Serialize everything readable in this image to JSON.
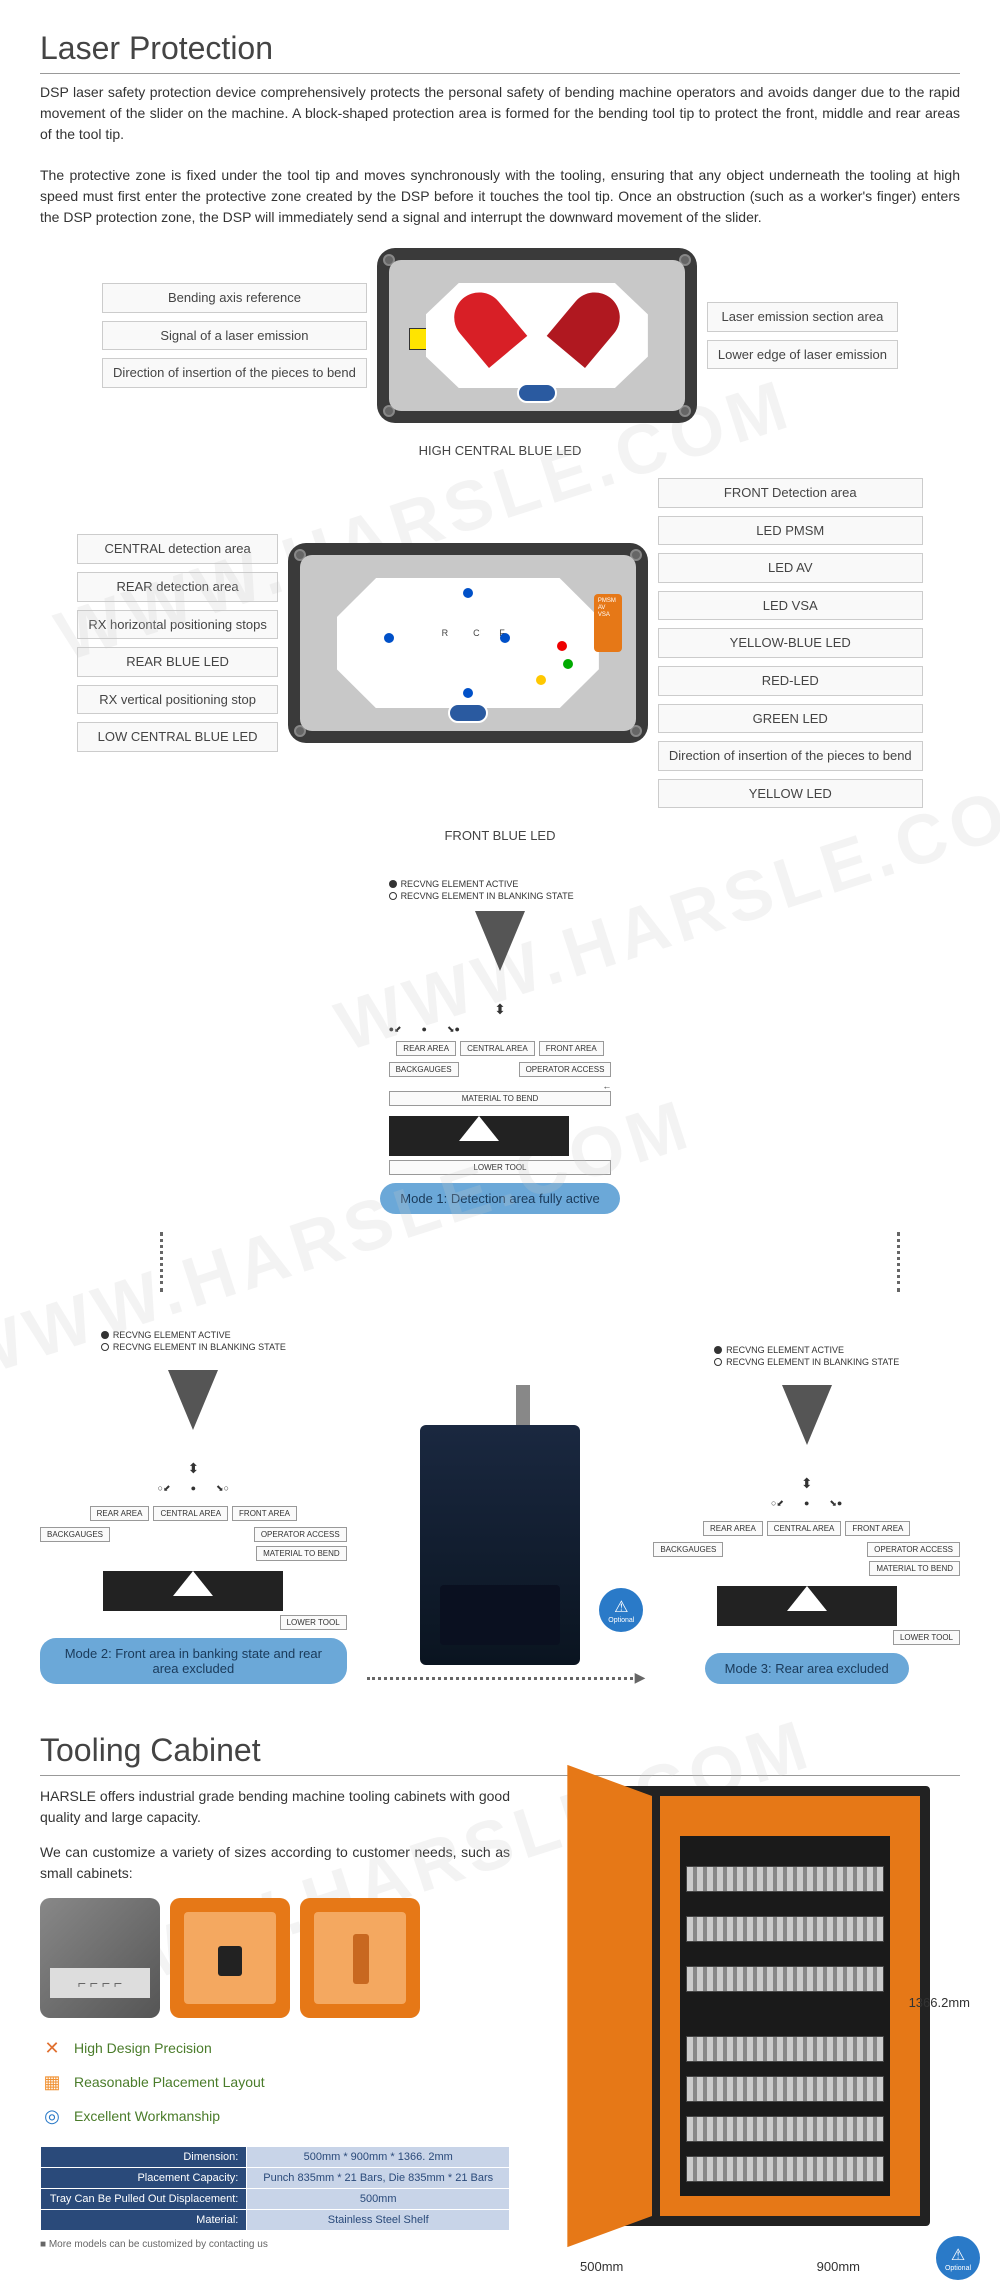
{
  "watermark": "WWW.HARSLE.COM",
  "section1": {
    "title": "Laser Protection",
    "para1": "DSP laser safety protection device comprehensively protects the personal safety of bending machine operators and avoids danger due to the rapid movement of the slider on the machine. A block-shaped protection area is formed for the bending tool tip to protect the front, middle and rear areas of the tool tip.",
    "para2": "The protective zone is fixed under the tool tip and moves synchronously with the tooling, ensuring that any object underneath the tooling at high speed must first enter the protective zone created by the DSP before it touches the tool tip. Once an obstruction (such as a worker's finger) enters the DSP protection zone, the DSP will immediately send a signal and interrupt the downward movement of the slider."
  },
  "diagram1": {
    "left": [
      "Bending axis reference",
      "Signal of a laser emission",
      "Direction of insertion of the pieces to bend"
    ],
    "right": [
      "Laser emission section area",
      "Lower edge of laser emission"
    ]
  },
  "diagram2": {
    "topLabel": "HIGH CENTRAL BLUE LED",
    "bottomLabel": "FRONT BLUE LED",
    "left": [
      "CENTRAL detection area",
      "REAR detection area",
      "RX horizontal positioning stops",
      "REAR BLUE LED",
      "RX vertical positioning stop",
      "LOW CENTRAL BLUE LED"
    ],
    "right": [
      "FRONT Detection area",
      "LED PMSM",
      "LED AV",
      "LED VSA",
      "YELLOW-BLUE LED",
      "RED-LED",
      "GREEN LED",
      "Direction of insertion of the pieces to bend",
      "YELLOW LED"
    ],
    "panel": "PMSM\nAV\nVSA"
  },
  "modes": {
    "legend": {
      "active": "RECVNG ELEMENT ACTIVE",
      "blank": "RECVNG ELEMENT IN BLANKING STATE"
    },
    "areas": [
      "REAR AREA",
      "CENTRAL AREA",
      "FRONT AREA"
    ],
    "labels": {
      "backgauges": "BACKGAUGES",
      "operator": "OPERATOR ACCESS",
      "material": "MATERIAL TO BEND",
      "lower": "LOWER TOOL"
    },
    "mode1": "Mode 1: Detection area fully active",
    "mode2": "Mode 2: Front area in banking state and rear area excluded",
    "mode3": "Mode 3: Rear area excluded",
    "optional": "Optional"
  },
  "section2": {
    "title": "Tooling Cabinet",
    "para1": "HARSLE offers industrial grade bending machine tooling cabinets with good quality and large capacity.",
    "para2": "We can customize a variety of sizes according to customer needs, such as small cabinets:",
    "features": [
      "High Design Precision",
      "Reasonable Placement Layout",
      "Excellent Workmanship"
    ],
    "featColors": [
      "#e07030",
      "#f09030",
      "#2a7ac8"
    ],
    "featIcons": [
      "✕",
      "▦",
      "◎"
    ],
    "specs": [
      {
        "k": "Dimension:",
        "v": "500mm * 900mm * 1366. 2mm"
      },
      {
        "k": "Placement Capacity:",
        "v": "Punch 835mm * 21 Bars, Die 835mm * 21 Bars"
      },
      {
        "k": "Tray Can Be Pulled Out Displacement:",
        "v": "500mm"
      },
      {
        "k": "Material:",
        "v": "Stainless Steel Shelf"
      }
    ],
    "note": "■  More models can be customized by contacting us",
    "dims": {
      "h": "1366.2mm",
      "w": "900mm",
      "d": "500mm"
    },
    "optional": "Optional",
    "colors": {
      "cabinet": "#e67817",
      "frame": "#1a1a1a"
    }
  }
}
